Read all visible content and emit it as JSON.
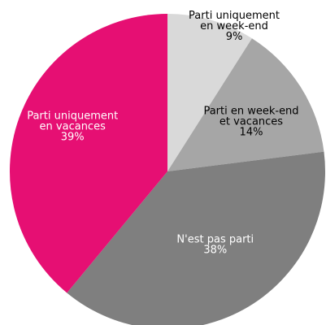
{
  "chart_data": {
    "type": "pie",
    "start_angle_deg": 0,
    "direction": "clockwise",
    "slices": [
      {
        "label_lines": [
          "Parti uniquement",
          "en week-end",
          "9%"
        ],
        "value": 9,
        "color": "#d9d9d9",
        "label_color": "#000000"
      },
      {
        "label_lines": [
          "Parti en week-end",
          "et vacances",
          "14%"
        ],
        "value": 14,
        "color": "#a6a6a6",
        "label_color": "#000000"
      },
      {
        "label_lines": [
          "N'est pas parti",
          "38%"
        ],
        "value": 38,
        "color": "#7f7f7f",
        "label_color": "#ffffff"
      },
      {
        "label_lines": [
          "Parti uniquement",
          "en vacances",
          "39%"
        ],
        "value": 39,
        "color": "#e60f73",
        "label_color": "#ffffff"
      }
    ]
  }
}
